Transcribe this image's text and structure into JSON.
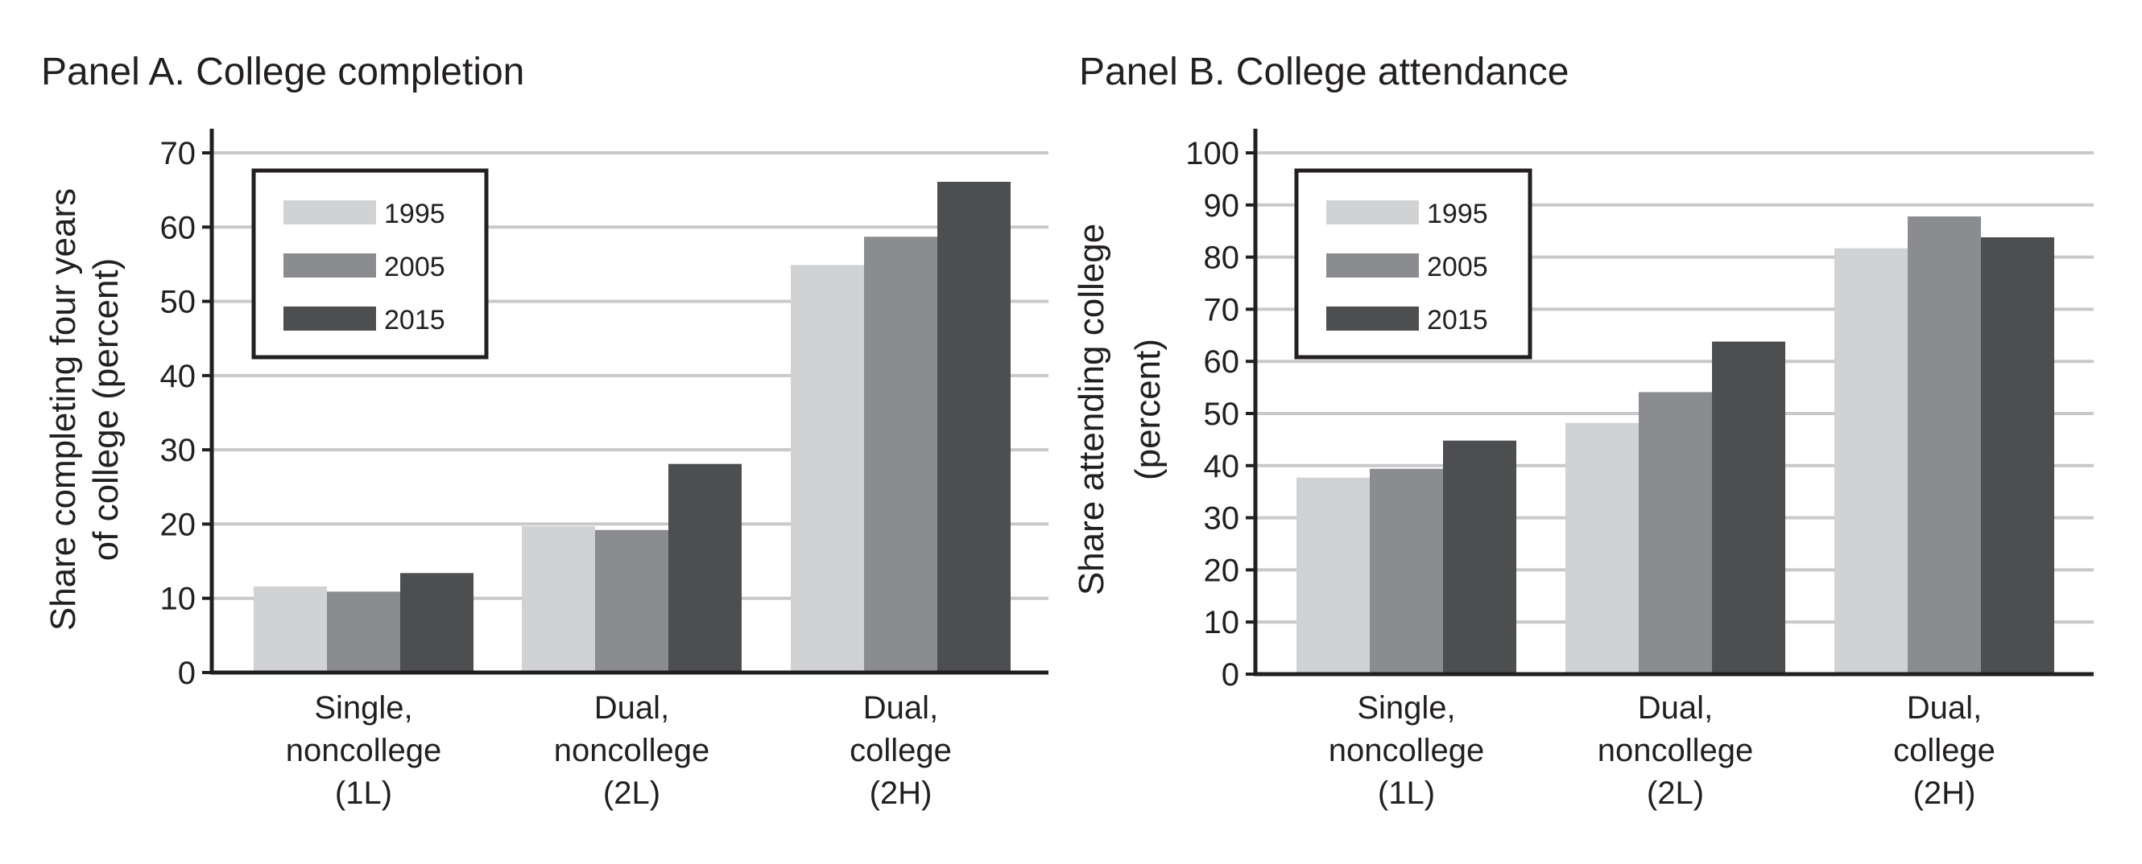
{
  "chart_data": [
    {
      "type": "bar",
      "title": "Panel A. College completion",
      "xlabel": "",
      "ylabel": [
        "Share completing four years",
        "of college (percent)"
      ],
      "categories": [
        [
          "Single,",
          "noncollege",
          "(1L)"
        ],
        [
          "Dual,",
          "noncollege",
          "(2L)"
        ],
        [
          "Dual,",
          "college",
          "(2H)"
        ]
      ],
      "ylim": [
        0,
        70
      ],
      "yticks": [
        0,
        10,
        20,
        30,
        40,
        50,
        60,
        70
      ],
      "grid": true,
      "legend": "top-left",
      "series": [
        {
          "name": "1995",
          "color": "#d1d2d4",
          "values": [
            11.6,
            19.7,
            54.9
          ]
        },
        {
          "name": "2005",
          "color": "#8b8c8f",
          "values": [
            10.9,
            19.2,
            58.7
          ]
        },
        {
          "name": "2015",
          "color": "#4d4e50",
          "values": [
            13.4,
            28.1,
            66.1
          ]
        }
      ]
    },
    {
      "type": "bar",
      "title": "Panel B. College attendance",
      "xlabel": "",
      "ylabel": [
        "Share attending college",
        "(percent)"
      ],
      "categories": [
        [
          "Single,",
          "noncollege",
          "(1L)"
        ],
        [
          "Dual,",
          "noncollege",
          "(2L)"
        ],
        [
          "Dual,",
          "college",
          "(2H)"
        ]
      ],
      "ylim": [
        0,
        100
      ],
      "yticks": [
        0,
        10,
        20,
        30,
        40,
        50,
        60,
        70,
        80,
        90,
        100
      ],
      "grid": true,
      "legend": "top-left",
      "series": [
        {
          "name": "1995",
          "color": "#d1d2d4",
          "values": [
            37.7,
            48.2,
            81.7
          ]
        },
        {
          "name": "2005",
          "color": "#8b8c8f",
          "values": [
            39.4,
            54.1,
            87.8
          ]
        },
        {
          "name": "2015",
          "color": "#4d4e50",
          "values": [
            44.8,
            63.8,
            83.8
          ]
        }
      ]
    }
  ]
}
